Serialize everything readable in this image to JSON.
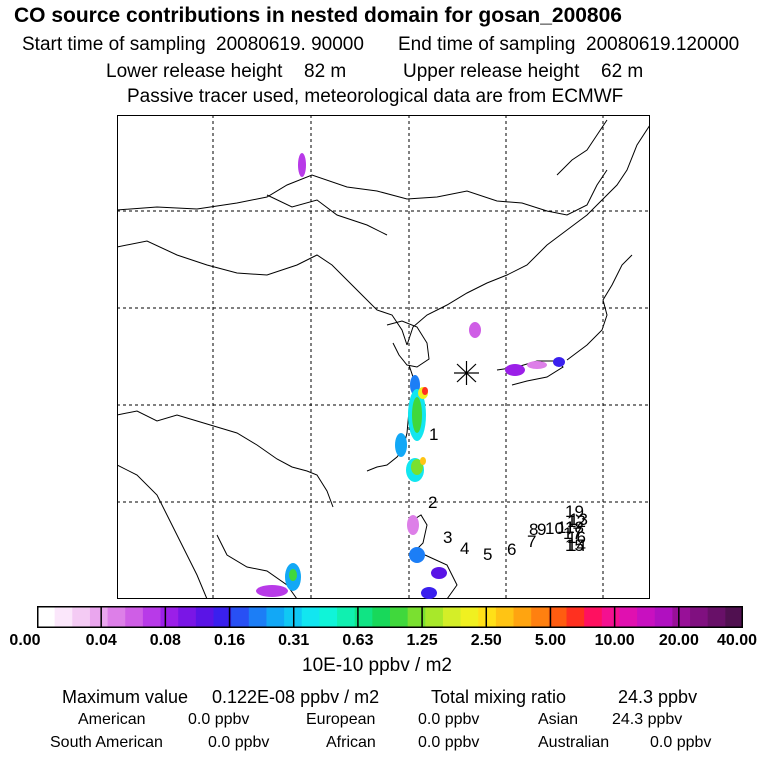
{
  "header": {
    "title": "CO  source contributions in nested domain for gosan_200806",
    "sampling_line": {
      "start_label": "Start time of sampling",
      "start_value": "20080619. 90000",
      "end_label": "End time of sampling",
      "end_value": "20080619.120000"
    },
    "release_line": {
      "lower_label": "Lower release height",
      "lower_value": "82 m",
      "upper_label": "Upper release height",
      "upper_value": "62 m"
    },
    "note": "Passive tracer used, meteorological data are from ECMWF"
  },
  "map": {
    "receptor_marker": "asterisk-receptor-icon",
    "trajectory_labels": [
      "1",
      "2",
      "3",
      "4",
      "5",
      "6",
      "7",
      "8",
      "9",
      "10",
      "11",
      "12",
      "13",
      "14",
      "15",
      "16",
      "17",
      "18",
      "19"
    ]
  },
  "colorbar": {
    "tick_labels": [
      "0.00",
      "0.04",
      "0.08",
      "0.16",
      "0.31",
      "0.63",
      "1.25",
      "2.50",
      "5.00",
      "10.00",
      "20.00",
      "40.00"
    ],
    "unit": "10E-10 ppbv / m2",
    "colors": [
      "#ffffff",
      "#fbe7fb",
      "#f4cbf4",
      "#eaa6ee",
      "#dd7fe8",
      "#cf5ee6",
      "#b83ae8",
      "#9b1fe8",
      "#7a16e6",
      "#5a14e6",
      "#3a20ee",
      "#2850f4",
      "#1c7ef6",
      "#12a8f6",
      "#10c8f4",
      "#12e6f0",
      "#10f4d8",
      "#10f0b0",
      "#10e484",
      "#18d85a",
      "#40d83c",
      "#7ae030",
      "#a8e82a",
      "#d4ee28",
      "#f0f020",
      "#ffe018",
      "#ffc414",
      "#ffa410",
      "#ff8010",
      "#ff5c10",
      "#ff3020",
      "#ff1060",
      "#f41090",
      "#e010b0",
      "#c810c0",
      "#b010c0",
      "#981098",
      "#801080",
      "#681068",
      "#501050"
    ]
  },
  "footer": {
    "max_label": "Maximum value",
    "max_value": "0.122E-08 ppbv / m2",
    "total_label": "Total mixing ratio",
    "total_value": "24.3 ppbv",
    "regions": [
      {
        "name": "American",
        "value": "0.0 ppbv"
      },
      {
        "name": "European",
        "value": "0.0 ppbv"
      },
      {
        "name": "Asian",
        "value": "24.3 ppbv"
      },
      {
        "name": "South American",
        "value": "0.0 ppbv"
      },
      {
        "name": "African",
        "value": "0.0 ppbv"
      },
      {
        "name": "Australian",
        "value": "0.0 ppbv"
      }
    ]
  }
}
